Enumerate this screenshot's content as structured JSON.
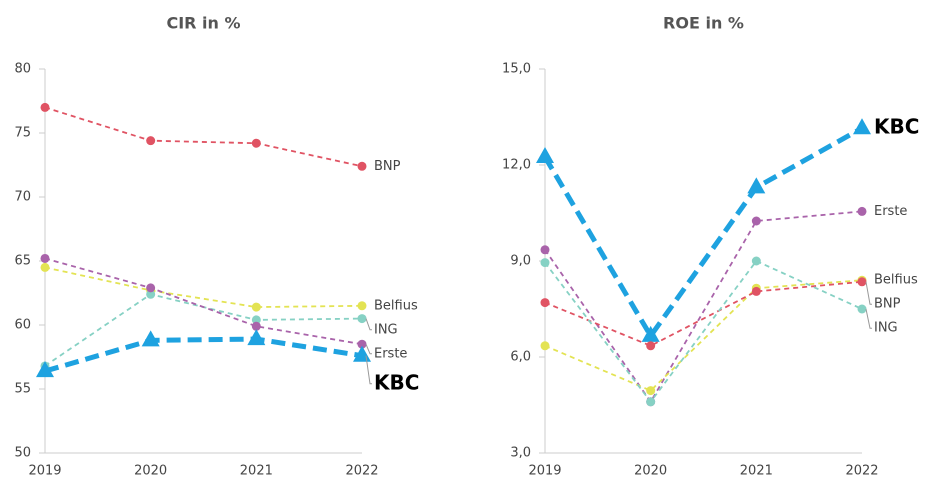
{
  "chart_data": [
    {
      "type": "line",
      "title": "CIR in %",
      "categories": [
        "2019",
        "2020",
        "2021",
        "2022"
      ],
      "ylim": [
        50,
        80
      ],
      "yticks": [
        50,
        55,
        60,
        65,
        70,
        75,
        80
      ],
      "series": [
        {
          "name": "BNP",
          "color": "#e05363",
          "values": [
            77.0,
            74.4,
            74.2,
            72.4
          ]
        },
        {
          "name": "Belfius",
          "color": "#e3e353",
          "values": [
            64.5,
            62.7,
            61.4,
            61.5
          ]
        },
        {
          "name": "ING",
          "color": "#86d1c4",
          "values": [
            56.8,
            62.4,
            60.4,
            60.5
          ]
        },
        {
          "name": "Erste",
          "color": "#a963aa",
          "values": [
            65.2,
            62.9,
            59.9,
            58.5
          ]
        },
        {
          "name": "KBC",
          "color": "#1ea2e0",
          "values": [
            56.4,
            58.8,
            58.9,
            57.6
          ]
        }
      ]
    },
    {
      "type": "line",
      "title": "ROE in %",
      "categories": [
        "2019",
        "2020",
        "2021",
        "2022"
      ],
      "ylim": [
        3,
        15
      ],
      "yticks": [
        {
          "value": 3,
          "label": "3,0"
        },
        {
          "value": 6,
          "label": "6,0"
        },
        {
          "value": 9,
          "label": "9,0"
        },
        {
          "value": 12,
          "label": "12,0"
        },
        {
          "value": 15,
          "label": "15,0"
        }
      ],
      "series": [
        {
          "name": "KBC",
          "color": "#1ea2e0",
          "values": [
            12.25,
            6.66,
            11.3,
            13.15
          ]
        },
        {
          "name": "Erste",
          "color": "#a963aa",
          "values": [
            9.35,
            4.6,
            10.25,
            10.55
          ]
        },
        {
          "name": "Belfius",
          "color": "#e3e353",
          "values": [
            6.35,
            4.95,
            8.15,
            8.4
          ]
        },
        {
          "name": "BNP",
          "color": "#e05363",
          "values": [
            7.7,
            6.35,
            8.05,
            8.35
          ]
        },
        {
          "name": "ING",
          "color": "#86d1c4",
          "values": [
            8.95,
            4.6,
            9.0,
            7.5
          ]
        }
      ]
    }
  ]
}
